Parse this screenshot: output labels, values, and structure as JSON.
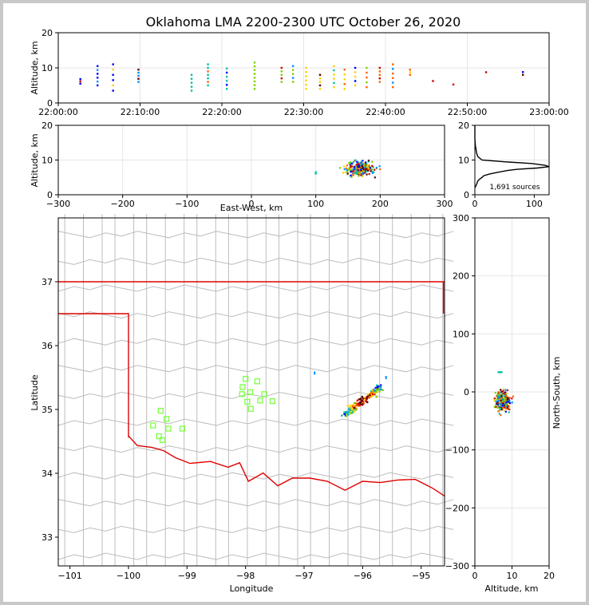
{
  "chart_data": {
    "type": "scatter",
    "title": "Oklahoma LMA 2200-2300 UTC October 26, 2020",
    "colors": {
      "grid": "#e6e6e6",
      "map_lines": "#bdbdbd",
      "state_border": "#e00000",
      "stations": "#7cff44",
      "histogram": "#000000",
      "source_palette": [
        "#0000ff",
        "#0090ff",
        "#00c0a0",
        "#80d000",
        "#ffd000",
        "#ff6000",
        "#d00000",
        "#600000"
      ]
    },
    "time_height": {
      "ylabel": "Altitude, km",
      "ylim": [
        0,
        20
      ],
      "y_ticks": [
        "0",
        "10",
        "20"
      ],
      "x_ticks": [
        "22:00:00",
        "22:10:00",
        "22:20:00",
        "22:30:00",
        "22:40:00",
        "22:50:00",
        "23:00:00"
      ],
      "xlim_minutes": [
        0,
        60
      ],
      "bursts": [
        {
          "t": 2.7,
          "zmin": 5.5,
          "zmax": 6.8,
          "n": 3
        },
        {
          "t": 4.8,
          "zmin": 5.0,
          "zmax": 10.5,
          "n": 6
        },
        {
          "t": 6.7,
          "zmin": 3.5,
          "zmax": 11.0,
          "n": 6
        },
        {
          "t": 9.8,
          "zmin": 6.0,
          "zmax": 9.5,
          "n": 5
        },
        {
          "t": 16.3,
          "zmin": 3.5,
          "zmax": 8.0,
          "n": 5
        },
        {
          "t": 18.3,
          "zmin": 5.0,
          "zmax": 11.0,
          "n": 7
        },
        {
          "t": 20.6,
          "zmin": 4.0,
          "zmax": 9.8,
          "n": 6
        },
        {
          "t": 24.0,
          "zmin": 4.0,
          "zmax": 11.5,
          "n": 8
        },
        {
          "t": 27.3,
          "zmin": 6.0,
          "zmax": 10.0,
          "n": 5
        },
        {
          "t": 28.7,
          "zmin": 6.0,
          "zmax": 10.5,
          "n": 5
        },
        {
          "t": 30.3,
          "zmin": 4.0,
          "zmax": 10.0,
          "n": 6
        },
        {
          "t": 32.0,
          "zmin": 4.0,
          "zmax": 8.0,
          "n": 5
        },
        {
          "t": 33.7,
          "zmin": 4.5,
          "zmax": 10.5,
          "n": 6
        },
        {
          "t": 35.0,
          "zmin": 4.0,
          "zmax": 9.5,
          "n": 5
        },
        {
          "t": 36.3,
          "zmin": 5.0,
          "zmax": 10.0,
          "n": 5
        },
        {
          "t": 37.7,
          "zmin": 4.5,
          "zmax": 10.0,
          "n": 5
        },
        {
          "t": 39.3,
          "zmin": 6.0,
          "zmax": 10.0,
          "n": 5
        },
        {
          "t": 40.9,
          "zmin": 4.5,
          "zmax": 11.0,
          "n": 6
        },
        {
          "t": 43.0,
          "zmin": 8.0,
          "zmax": 9.5,
          "n": 3
        },
        {
          "t": 45.8,
          "zmin": 6.0,
          "zmax": 6.5,
          "n": 1
        },
        {
          "t": 48.3,
          "zmin": 5.0,
          "zmax": 5.5,
          "n": 1
        },
        {
          "t": 52.3,
          "zmin": 8.5,
          "zmax": 9.0,
          "n": 1
        },
        {
          "t": 56.8,
          "zmin": 8.0,
          "zmax": 8.8,
          "n": 2
        }
      ]
    },
    "ew_height": {
      "xlabel": "East-West, km",
      "ylabel": "Altitude, km",
      "xlim": [
        -300,
        300
      ],
      "ylim": [
        0,
        20
      ],
      "x_ticks": [
        "−300",
        "−200",
        "−100",
        "0",
        "100",
        "200",
        "300"
      ],
      "y_ticks": [
        "0",
        "10",
        "20"
      ],
      "cluster": {
        "x_center": 168,
        "x_spread": 20,
        "z_center": 7.5,
        "z_spread": 2.2,
        "n": 240
      },
      "outlier": {
        "x": 100,
        "z": 6.3
      }
    },
    "altitude_histogram": {
      "xlim": [
        0,
        125
      ],
      "ylim": [
        0,
        20
      ],
      "x_ticks": [
        "0",
        "100"
      ],
      "y_ticks": [
        "0",
        "10",
        "20"
      ],
      "source_count_label": "1,691 sources",
      "profile": [
        {
          "alt": 20,
          "count": 0
        },
        {
          "alt": 16,
          "count": 0
        },
        {
          "alt": 14,
          "count": 1
        },
        {
          "alt": 13,
          "count": 2
        },
        {
          "alt": 12,
          "count": 3
        },
        {
          "alt": 11,
          "count": 5
        },
        {
          "alt": 10,
          "count": 12
        },
        {
          "alt": 9.5,
          "count": 50
        },
        {
          "alt": 9,
          "count": 95
        },
        {
          "alt": 8.5,
          "count": 118
        },
        {
          "alt": 8.1,
          "count": 125
        },
        {
          "alt": 7.7,
          "count": 105
        },
        {
          "alt": 7.3,
          "count": 70
        },
        {
          "alt": 7.0,
          "count": 55
        },
        {
          "alt": 6.5,
          "count": 40
        },
        {
          "alt": 6.0,
          "count": 25
        },
        {
          "alt": 5.5,
          "count": 15
        },
        {
          "alt": 5.0,
          "count": 12
        },
        {
          "alt": 4.5,
          "count": 8
        },
        {
          "alt": 4.0,
          "count": 5
        },
        {
          "alt": 3.0,
          "count": 3
        },
        {
          "alt": 2.0,
          "count": 0
        }
      ]
    },
    "plan_view": {
      "xlabel": "Longitude",
      "ylabel": "Latitude",
      "xlim": [
        -101.2,
        -94.6
      ],
      "ylim": [
        32.55,
        38.0
      ],
      "x_ticks": [
        "−101",
        "−100",
        "−99",
        "−98",
        "−97",
        "−96",
        "−95"
      ],
      "y_ticks": [
        "33",
        "34",
        "35",
        "36",
        "37"
      ],
      "storm_line": {
        "lon_start": -96.3,
        "lat_start": 34.92,
        "lon_end": -95.7,
        "lat_end": 35.35,
        "n": 160
      },
      "isolated_sources": [
        {
          "lon": -96.82,
          "lat": 35.57
        },
        {
          "lon": -95.6,
          "lat": 35.5
        }
      ],
      "stations": [
        {
          "lon": -99.45,
          "lat": 34.98
        },
        {
          "lon": -99.35,
          "lat": 34.85
        },
        {
          "lon": -99.58,
          "lat": 34.75
        },
        {
          "lon": -99.32,
          "lat": 34.7
        },
        {
          "lon": -99.48,
          "lat": 34.58
        },
        {
          "lon": -99.42,
          "lat": 34.52
        },
        {
          "lon": -99.08,
          "lat": 34.7
        },
        {
          "lon": -98.0,
          "lat": 35.48
        },
        {
          "lon": -97.8,
          "lat": 35.44
        },
        {
          "lon": -98.05,
          "lat": 35.35
        },
        {
          "lon": -97.92,
          "lat": 35.27
        },
        {
          "lon": -98.06,
          "lat": 35.24
        },
        {
          "lon": -97.68,
          "lat": 35.24
        },
        {
          "lon": -97.97,
          "lat": 35.12
        },
        {
          "lon": -97.75,
          "lat": 35.14
        },
        {
          "lon": -97.54,
          "lat": 35.13
        },
        {
          "lon": -97.91,
          "lat": 35.01
        }
      ]
    },
    "ns_height": {
      "xlabel": "Altitude, km",
      "ylabel": "North-South, km",
      "xlim": [
        0,
        20
      ],
      "ylim": [
        -300,
        300
      ],
      "x_ticks": [
        "0",
        "10",
        "20"
      ],
      "y_ticks": [
        "300",
        "200",
        "100",
        "0",
        "−100",
        "−200",
        "−300"
      ],
      "cluster": {
        "z_center": 7.5,
        "z_spread": 2.0,
        "y_center": -15,
        "y_spread": 15,
        "n": 240
      },
      "outlier": {
        "z": 6.8,
        "y": 34
      }
    }
  }
}
